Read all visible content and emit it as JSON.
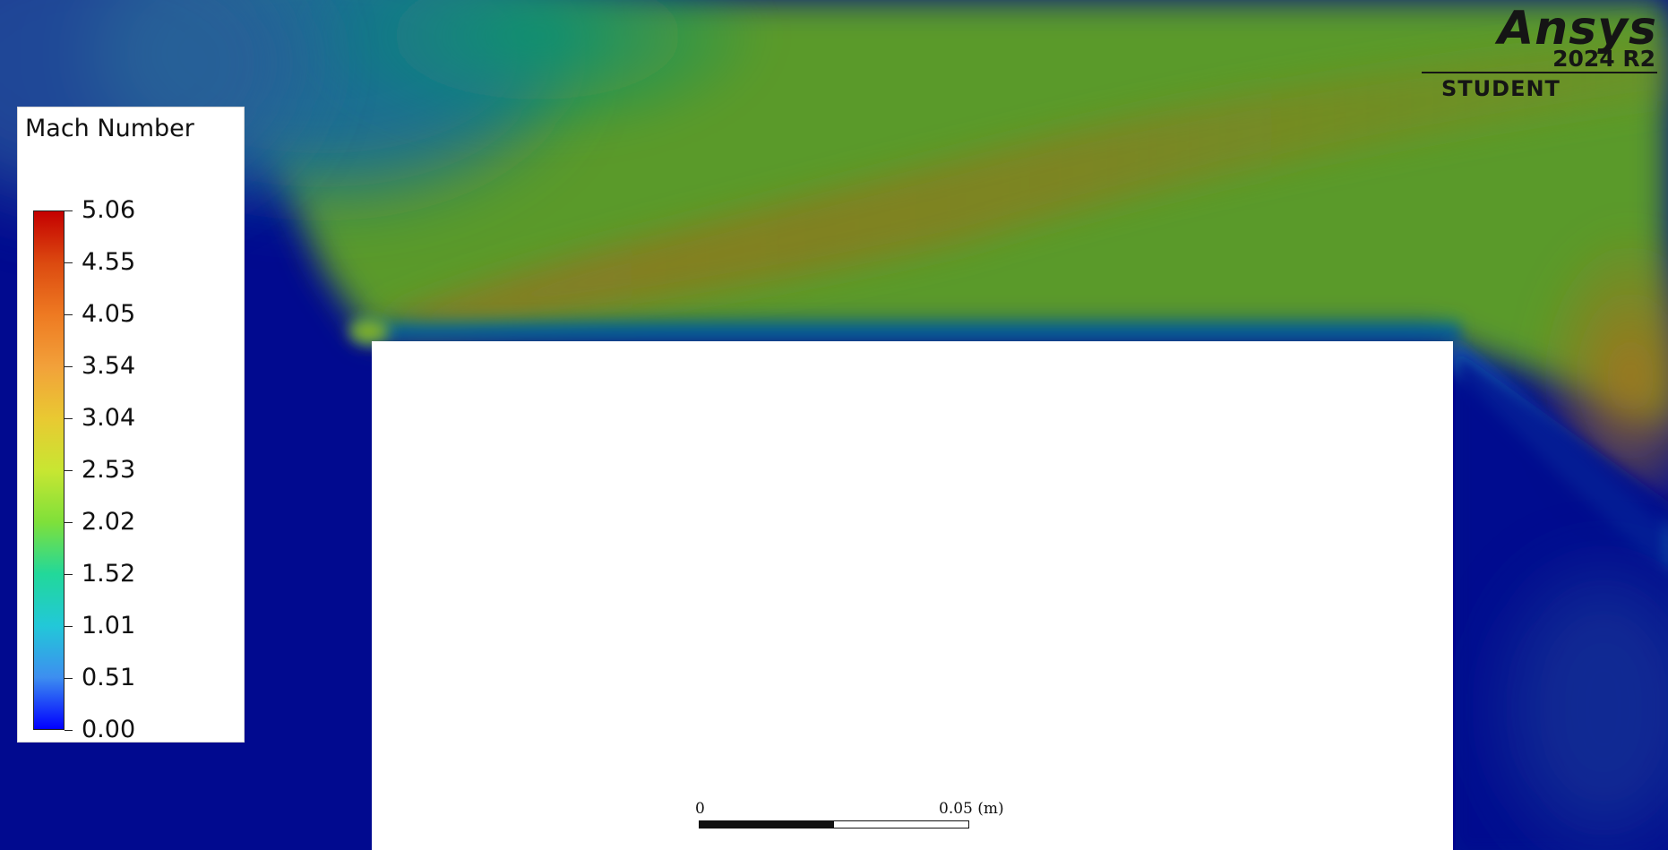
{
  "legend": {
    "title": "Mach Number",
    "levels": [
      "5.06",
      "4.55",
      "4.05",
      "3.54",
      "3.04",
      "2.53",
      "2.02",
      "1.52",
      "1.01",
      "0.51",
      "0.00"
    ],
    "colormap": [
      "#0000ff",
      "#3d8ef0",
      "#22c8d8",
      "#22d89a",
      "#7fe03a",
      "#c8e632",
      "#e9c932",
      "#f2a13a",
      "#ee7a22",
      "#dc4a10",
      "#c40000"
    ]
  },
  "logo": {
    "brand": "Ansys",
    "version": "2024 R2",
    "edition": "STUDENT"
  },
  "scale_bar": {
    "start_label": "0",
    "end_label": "0.05 (m)"
  },
  "field_colors": {
    "subsonic": "#010a8f",
    "freestream": "#5a9a2c",
    "peak": "#8a7a22",
    "body": "#ffffff"
  }
}
